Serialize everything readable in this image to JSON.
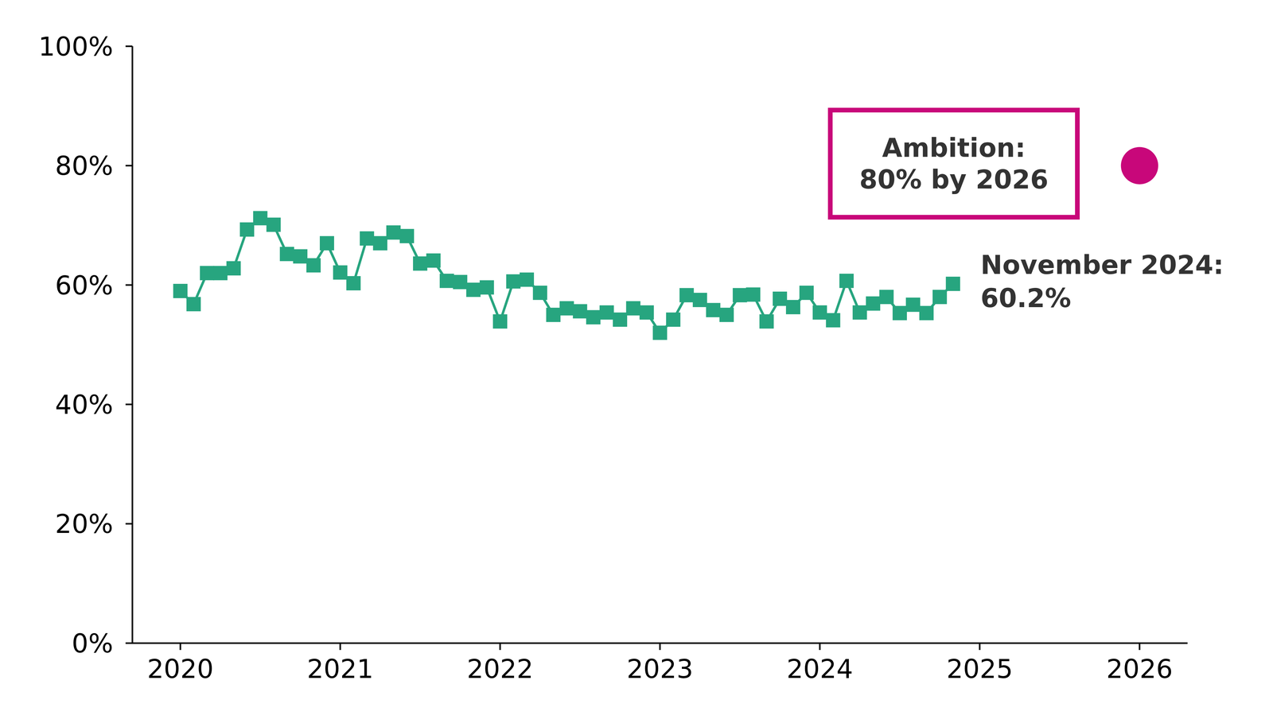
{
  "chart_data": {
    "type": "line",
    "x": [
      2020,
      2020.083,
      2020.167,
      2020.25,
      2020.333,
      2020.417,
      2020.5,
      2020.583,
      2020.667,
      2020.75,
      2020.833,
      2020.917,
      2021,
      2021.083,
      2021.167,
      2021.25,
      2021.333,
      2021.417,
      2021.5,
      2021.583,
      2021.667,
      2021.75,
      2021.833,
      2021.917,
      2022,
      2022.083,
      2022.167,
      2022.25,
      2022.333,
      2022.417,
      2022.5,
      2022.583,
      2022.667,
      2022.75,
      2022.833,
      2022.917,
      2023,
      2023.083,
      2023.167,
      2023.25,
      2023.333,
      2023.417,
      2023.5,
      2023.583,
      2023.667,
      2023.75,
      2023.833,
      2023.917,
      2024,
      2024.083,
      2024.167,
      2024.25,
      2024.333,
      2024.417,
      2024.5,
      2024.583,
      2024.667,
      2024.75,
      2024.833
    ],
    "series": [
      {
        "color": "#27a57f",
        "marker": "square",
        "values": [
          59.0,
          56.8,
          62.0,
          62.0,
          62.8,
          69.3,
          71.2,
          70.1,
          65.2,
          64.8,
          63.3,
          67.0,
          62.1,
          60.3,
          67.8,
          67.0,
          68.8,
          68.2,
          63.6,
          64.1,
          60.7,
          60.5,
          59.2,
          59.6,
          53.9,
          60.6,
          60.9,
          58.7,
          55.0,
          56.1,
          55.6,
          54.6,
          55.4,
          54.2,
          56.1,
          55.4,
          52.0,
          54.2,
          58.3,
          57.5,
          55.8,
          55.0,
          58.3,
          58.4,
          53.9,
          57.7,
          56.3,
          58.7,
          55.4,
          54.1,
          60.7,
          55.4,
          56.9,
          58.0,
          55.3,
          56.7,
          55.3,
          58.0,
          60.2
        ]
      }
    ],
    "target": {
      "x": 2026,
      "y": 80,
      "color": "#c8077a",
      "label": "Ambition:\n80% by 2026"
    },
    "annotations": [
      "November 2024:\n60.2%"
    ],
    "xlim": [
      2019.7,
      2026.3
    ],
    "xticks": [
      2020,
      2021,
      2022,
      2023,
      2024,
      2025,
      2026
    ],
    "ylim": [
      0,
      100
    ],
    "yticks": [
      {
        "value": 0,
        "label": "0%"
      },
      {
        "value": 20,
        "label": "20%"
      },
      {
        "value": 40,
        "label": "40%"
      },
      {
        "value": 60,
        "label": "60%"
      },
      {
        "value": 80,
        "label": "80%"
      },
      {
        "value": 100,
        "label": "100%"
      }
    ],
    "grid": false
  }
}
